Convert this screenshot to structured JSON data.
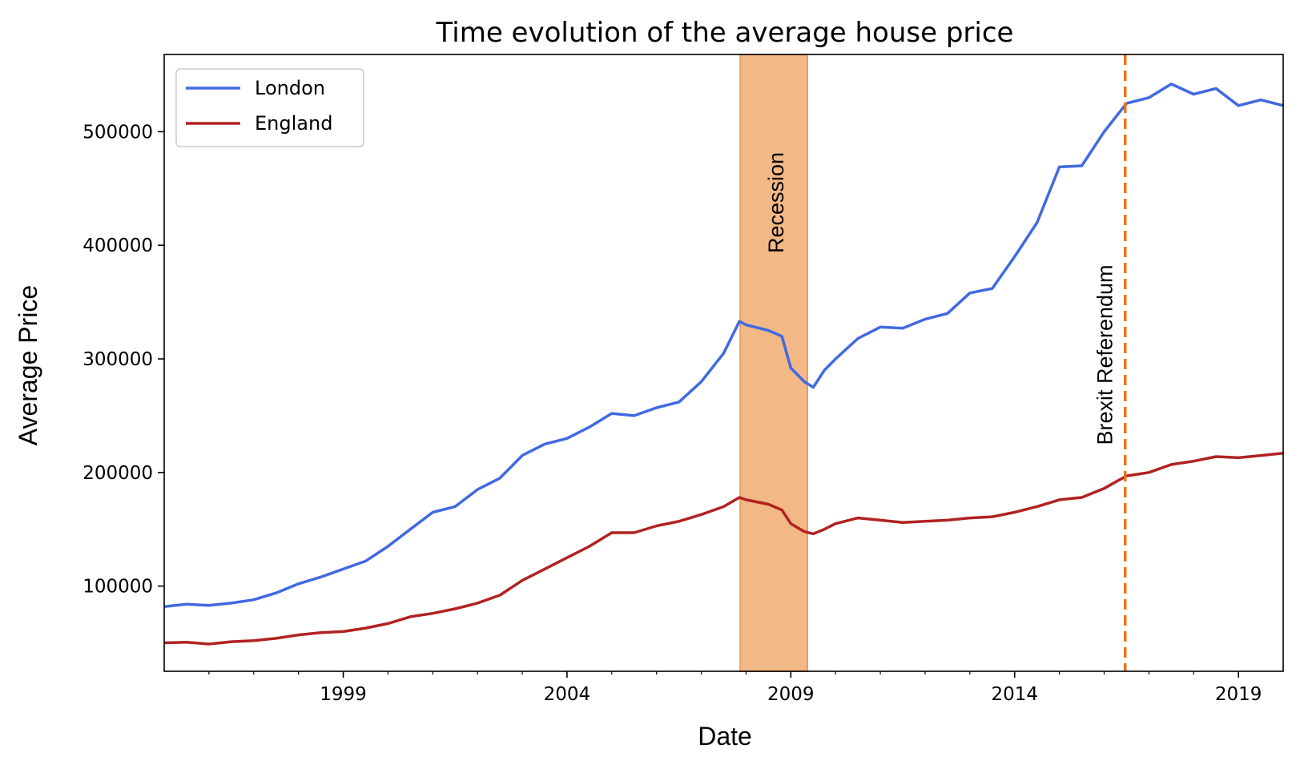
{
  "chart_data": {
    "type": "line",
    "title": "Time evolution of the average house price",
    "xlabel": "Date",
    "ylabel": "Average Price",
    "xlim": [
      1995.0,
      2020.0
    ],
    "ylim": [
      25000,
      568000
    ],
    "x_major_ticks": [
      1999,
      2004,
      2009,
      2014,
      2019
    ],
    "x_minor_ticks": [
      1996,
      1997,
      1998,
      2000,
      2001,
      2002,
      2003,
      2005,
      2006,
      2007,
      2008,
      2010,
      2011,
      2012,
      2013,
      2015,
      2016,
      2017,
      2018
    ],
    "y_ticks": [
      100000,
      200000,
      300000,
      400000,
      500000
    ],
    "grid": false,
    "legend": {
      "position": "top-left",
      "entries": [
        "London",
        "England"
      ]
    },
    "series": [
      {
        "name": "London",
        "color": "#4169e1",
        "points": [
          [
            1995.0,
            82000
          ],
          [
            1995.5,
            84000
          ],
          [
            1996.0,
            83000
          ],
          [
            1996.5,
            85000
          ],
          [
            1997.0,
            88000
          ],
          [
            1997.5,
            94000
          ],
          [
            1998.0,
            102000
          ],
          [
            1998.5,
            108000
          ],
          [
            1999.0,
            115000
          ],
          [
            1999.5,
            122000
          ],
          [
            2000.0,
            135000
          ],
          [
            2000.5,
            150000
          ],
          [
            2001.0,
            165000
          ],
          [
            2001.5,
            170000
          ],
          [
            2002.0,
            185000
          ],
          [
            2002.5,
            195000
          ],
          [
            2003.0,
            215000
          ],
          [
            2003.5,
            225000
          ],
          [
            2004.0,
            230000
          ],
          [
            2004.5,
            240000
          ],
          [
            2005.0,
            252000
          ],
          [
            2005.5,
            250000
          ],
          [
            2006.0,
            257000
          ],
          [
            2006.5,
            262000
          ],
          [
            2007.0,
            280000
          ],
          [
            2007.5,
            305000
          ],
          [
            2007.85,
            333000
          ],
          [
            2008.0,
            330000
          ],
          [
            2008.5,
            325000
          ],
          [
            2008.8,
            320000
          ],
          [
            2009.0,
            292000
          ],
          [
            2009.3,
            280000
          ],
          [
            2009.5,
            275000
          ],
          [
            2009.75,
            290000
          ],
          [
            2010.0,
            300000
          ],
          [
            2010.5,
            318000
          ],
          [
            2011.0,
            328000
          ],
          [
            2011.5,
            327000
          ],
          [
            2012.0,
            335000
          ],
          [
            2012.5,
            340000
          ],
          [
            2013.0,
            358000
          ],
          [
            2013.5,
            362000
          ],
          [
            2014.0,
            390000
          ],
          [
            2014.5,
            420000
          ],
          [
            2015.0,
            469000
          ],
          [
            2015.5,
            470000
          ],
          [
            2016.0,
            500000
          ],
          [
            2016.5,
            525000
          ],
          [
            2017.0,
            530000
          ],
          [
            2017.5,
            542000
          ],
          [
            2018.0,
            533000
          ],
          [
            2018.5,
            538000
          ],
          [
            2019.0,
            523000
          ],
          [
            2019.5,
            528000
          ],
          [
            2020.0,
            523000
          ]
        ]
      },
      {
        "name": "England",
        "color": "#b22222",
        "points": [
          [
            1995.0,
            50000
          ],
          [
            1995.5,
            50500
          ],
          [
            1996.0,
            49000
          ],
          [
            1996.5,
            51000
          ],
          [
            1997.0,
            52000
          ],
          [
            1997.5,
            54000
          ],
          [
            1998.0,
            57000
          ],
          [
            1998.5,
            59000
          ],
          [
            1999.0,
            60000
          ],
          [
            1999.5,
            63000
          ],
          [
            2000.0,
            67000
          ],
          [
            2000.5,
            73000
          ],
          [
            2001.0,
            76000
          ],
          [
            2001.5,
            80000
          ],
          [
            2002.0,
            85000
          ],
          [
            2002.5,
            92000
          ],
          [
            2003.0,
            105000
          ],
          [
            2003.5,
            115000
          ],
          [
            2004.0,
            125000
          ],
          [
            2004.5,
            135000
          ],
          [
            2005.0,
            147000
          ],
          [
            2005.5,
            147000
          ],
          [
            2006.0,
            153000
          ],
          [
            2006.5,
            157000
          ],
          [
            2007.0,
            163000
          ],
          [
            2007.5,
            170000
          ],
          [
            2007.85,
            178000
          ],
          [
            2008.0,
            176000
          ],
          [
            2008.5,
            172000
          ],
          [
            2008.8,
            167000
          ],
          [
            2009.0,
            155000
          ],
          [
            2009.3,
            148000
          ],
          [
            2009.5,
            146000
          ],
          [
            2009.75,
            150000
          ],
          [
            2010.0,
            155000
          ],
          [
            2010.5,
            160000
          ],
          [
            2011.0,
            158000
          ],
          [
            2011.5,
            156000
          ],
          [
            2012.0,
            157000
          ],
          [
            2012.5,
            158000
          ],
          [
            2013.0,
            160000
          ],
          [
            2013.5,
            161000
          ],
          [
            2014.0,
            165000
          ],
          [
            2014.5,
            170000
          ],
          [
            2015.0,
            176000
          ],
          [
            2015.5,
            178000
          ],
          [
            2016.0,
            186000
          ],
          [
            2016.5,
            197000
          ],
          [
            2017.0,
            200000
          ],
          [
            2017.5,
            207000
          ],
          [
            2018.0,
            210000
          ],
          [
            2018.5,
            214000
          ],
          [
            2019.0,
            213000
          ],
          [
            2019.5,
            215000
          ],
          [
            2020.0,
            217000
          ]
        ]
      }
    ],
    "annotations": [
      {
        "type": "span",
        "label": "Recession",
        "x_start": 2007.87,
        "x_end": 2009.37,
        "color": "#f2b885"
      },
      {
        "type": "vline",
        "label": "Brexit Referendum",
        "x": 2016.47,
        "color": "#e8741a"
      }
    ]
  }
}
